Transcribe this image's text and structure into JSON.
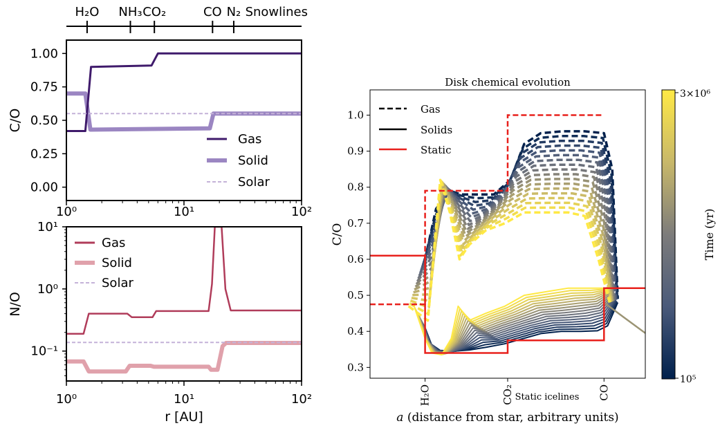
{
  "chart_data": [
    {
      "id": "snowlines",
      "type": "line",
      "title": "Snowlines",
      "markers": [
        {
          "label": "H₂O",
          "x": 1.5
        },
        {
          "label": "NH₃",
          "x": 3.5
        },
        {
          "label": "CO₂",
          "x": 5.6
        },
        {
          "label": "CO",
          "x": 17.5
        },
        {
          "label": "N₂",
          "x": 26.5
        }
      ],
      "xlim": [
        1,
        100
      ],
      "xscale": "log"
    },
    {
      "id": "co-panel",
      "type": "line",
      "xlabel": "",
      "ylabel": "C/O",
      "xscale": "log",
      "xlim": [
        1,
        100
      ],
      "ylim": [
        -0.1,
        1.1
      ],
      "yticks": [
        "0.00",
        "0.25",
        "0.50",
        "0.75",
        "1.00"
      ],
      "ytick_values": [
        0,
        0.25,
        0.5,
        0.75,
        1.0
      ],
      "xticks": [
        "10⁰",
        "10¹",
        "10²"
      ],
      "legend": "lower-right",
      "series": [
        {
          "name": "Gas",
          "color": "#3f1a6b",
          "x": [
            1,
            1.45,
            1.62,
            5.3,
            6.0,
            100
          ],
          "y": [
            0.42,
            0.42,
            0.9,
            0.91,
            1.0,
            1.0
          ]
        },
        {
          "name": "Solid",
          "color": "#9b86c2",
          "x": [
            1,
            1.45,
            1.6,
            16.6,
            17.8,
            100
          ],
          "y": [
            0.7,
            0.7,
            0.43,
            0.44,
            0.55,
            0.55
          ]
        },
        {
          "name": "Solar",
          "color": "#c4b2d8",
          "x": [
            1,
            100
          ],
          "y": [
            0.55,
            0.55
          ],
          "dash": true
        }
      ]
    },
    {
      "id": "no-panel",
      "type": "line",
      "xlabel": "r [AU]",
      "ylabel": "N/O",
      "xscale": "log",
      "yscale": "log",
      "xlim": [
        1,
        100
      ],
      "ylim": [
        0.033,
        10
      ],
      "yticks": [
        "10⁻¹",
        "10⁰",
        "10¹"
      ],
      "ytick_values": [
        0.1,
        1,
        10
      ],
      "xticks": [
        "10⁰",
        "10¹",
        "10²"
      ],
      "legend": "upper-left",
      "series": [
        {
          "name": "Gas",
          "color": "#b03c5a",
          "x": [
            1,
            1.4,
            1.55,
            3.3,
            3.6,
            5.4,
            5.8,
            16.2,
            17.3,
            18.3,
            18.7,
            20.3,
            20.9,
            22.5,
            25.0,
            100
          ],
          "y": [
            0.19,
            0.19,
            0.4,
            0.4,
            0.35,
            0.35,
            0.44,
            0.44,
            1.2,
            10,
            10,
            10,
            10,
            1.0,
            0.45,
            0.45
          ]
        },
        {
          "name": "Solid",
          "color": "#e0a1ab",
          "x": [
            1,
            1.4,
            1.55,
            3.2,
            3.45,
            5.2,
            5.55,
            16.2,
            17.0,
            19.3,
            21.3,
            22.8,
            100
          ],
          "y": [
            0.068,
            0.068,
            0.047,
            0.047,
            0.058,
            0.058,
            0.056,
            0.056,
            0.05,
            0.05,
            0.12,
            0.135,
            0.135
          ]
        },
        {
          "name": "Solar",
          "color": "#c4b2d8",
          "x": [
            1,
            100
          ],
          "y": [
            0.138,
            0.138
          ],
          "dash": true
        }
      ]
    },
    {
      "id": "disk-panel",
      "type": "line",
      "title": "Disk chemical evolution",
      "ylabel": "C/O",
      "xlabel": "a (distance from star, arbitrary units)",
      "xlabel_italic_part": "a",
      "xlabel_rest": " (distance from star, arbitrary units)",
      "xlim": [
        0,
        10
      ],
      "ylim": [
        0.27,
        1.07
      ],
      "yticks": [
        "0.3",
        "0.4",
        "0.5",
        "0.6",
        "0.7",
        "0.8",
        "0.9",
        "1.0"
      ],
      "ytick_values": [
        0.3,
        0.4,
        0.5,
        0.6,
        0.7,
        0.8,
        0.9,
        1.0
      ],
      "xtick_labels": [
        {
          "label": "H₂O",
          "x": 2
        },
        {
          "label": "CO₂",
          "x": 5
        },
        {
          "label": "CO",
          "x": 8.5
        }
      ],
      "inner_label": "Static icelines",
      "legend": "upper-left",
      "legend_entries": [
        {
          "name": "Gas",
          "color": "#000000",
          "style": "dashed"
        },
        {
          "name": "Solids",
          "color": "#000000",
          "style": "solid"
        },
        {
          "name": "Static",
          "color": "#e8201c",
          "style": "solid"
        }
      ],
      "static_gas": {
        "x": [
          0,
          2,
          2,
          5,
          5,
          8.5
        ],
        "y": [
          0.475,
          0.475,
          0.79,
          0.79,
          1.0,
          1.0
        ]
      },
      "static_solid": {
        "x": [
          0,
          2,
          2,
          5,
          5,
          8.5,
          8.5,
          10
        ],
        "y": [
          0.61,
          0.61,
          0.34,
          0.34,
          0.375,
          0.375,
          0.52,
          0.52
        ]
      },
      "evolution": {
        "n_curves": 18,
        "gas_early": {
          "x": [
            2.0,
            2.4,
            2.9,
            3.3,
            3.9,
            4.5,
            5.1,
            5.6,
            6.2,
            7.0,
            7.8,
            8.5,
            8.8,
            9.0
          ],
          "y": [
            0.6,
            0.74,
            0.79,
            0.78,
            0.78,
            0.78,
            0.82,
            0.92,
            0.95,
            0.955,
            0.955,
            0.95,
            0.85,
            0.49
          ]
        },
        "gas_late": {
          "x": [
            1.4,
            2.1,
            2.55,
            2.9,
            3.25,
            3.6,
            4.2,
            4.9,
            5.6,
            6.4,
            7.2,
            7.8,
            8.3,
            8.7
          ],
          "y": [
            0.47,
            0.43,
            0.82,
            0.73,
            0.6,
            0.64,
            0.68,
            0.7,
            0.73,
            0.73,
            0.73,
            0.72,
            0.6,
            0.48
          ]
        },
        "solid_early": {
          "x": [
            2.0,
            2.25,
            2.6,
            3.2,
            3.8,
            4.5,
            5.2,
            5.9,
            6.7,
            7.5,
            8.2,
            8.6,
            9.0
          ],
          "y": [
            0.41,
            0.36,
            0.345,
            0.345,
            0.35,
            0.36,
            0.37,
            0.39,
            0.4,
            0.4,
            0.4,
            0.41,
            0.48
          ]
        },
        "solid_late": {
          "x": [
            1.6,
            2.0,
            2.25,
            2.6,
            2.95,
            3.2,
            3.6,
            4.2,
            4.9,
            5.6,
            6.4,
            7.2,
            8.0,
            8.6
          ],
          "y": [
            0.47,
            0.38,
            0.34,
            0.335,
            0.38,
            0.47,
            0.43,
            0.45,
            0.47,
            0.5,
            0.51,
            0.52,
            0.52,
            0.52
          ]
        },
        "tail": {
          "x": [
            8.5,
            9.2,
            10
          ],
          "y": [
            0.48,
            0.44,
            0.395
          ]
        }
      },
      "colorbar": {
        "label": "Time (yr)",
        "top": "3×10⁶",
        "bottom": "10⁵",
        "colors": [
          "#ffe945",
          "#c8b86a",
          "#7d7c7b",
          "#4a5a7a",
          "#00204c"
        ]
      }
    }
  ]
}
